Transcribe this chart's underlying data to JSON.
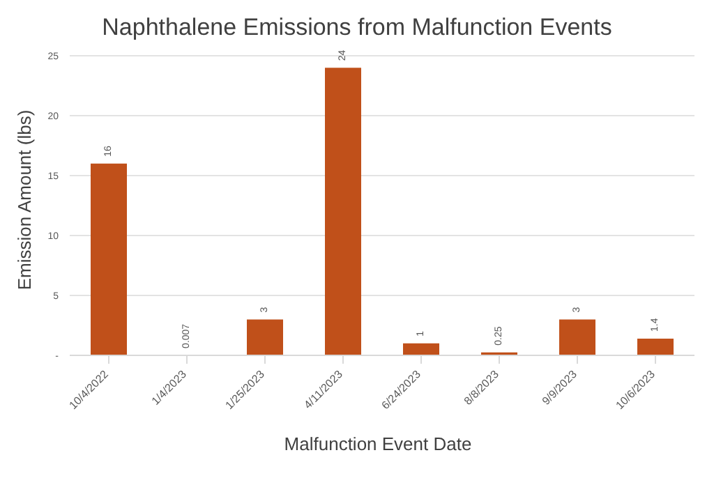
{
  "chart_data": {
    "type": "bar",
    "title": "Naphthalene Emissions from Malfunction Events",
    "xlabel": "Malfunction Event Date",
    "ylabel": "Emission Amount (lbs)",
    "categories": [
      "10/4/2022",
      "1/4/2023",
      "1/25/2023",
      "4/11/2023",
      "6/24/2023",
      "8/8/2023",
      "9/9/2023",
      "10/6/2023"
    ],
    "values": [
      16,
      0.007,
      3,
      24,
      1,
      0.25,
      3,
      1.4
    ],
    "color": "#c0501a",
    "ylim": [
      0,
      25
    ],
    "yticks": [
      {
        "value": 0,
        "label": "-"
      },
      5,
      10,
      15,
      20,
      25
    ],
    "grid": "y",
    "data_labels": true
  }
}
